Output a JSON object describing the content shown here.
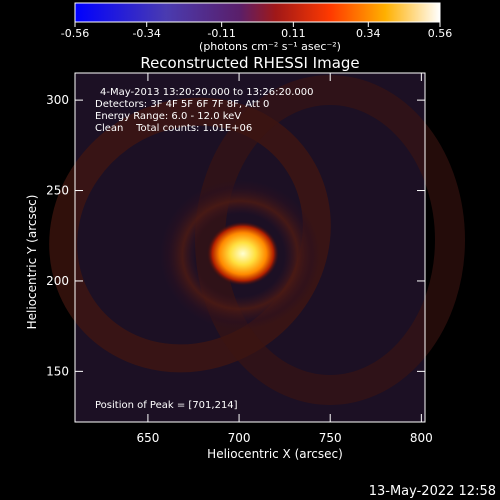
{
  "chart_data": {
    "type": "heatmap",
    "title": "Reconstructed RHESSI Image",
    "xlabel": "Heliocentric X (arcsec)",
    "ylabel": "Heliocentric Y (arcsec)",
    "xlim": [
      610,
      802
    ],
    "ylim": [
      122,
      315
    ],
    "x_ticks": [
      "650",
      "700",
      "750",
      "800"
    ],
    "y_ticks": [
      "150",
      "200",
      "250",
      "300"
    ],
    "grid": false,
    "colorbar": {
      "colormap": "hot",
      "range": [
        -0.56,
        0.56
      ],
      "tick_labels": [
        "-0.56",
        "-0.34",
        "-0.11",
        "0.11",
        "0.34",
        "0.56"
      ],
      "unit_label": "(photons cm⁻² s⁻¹ asec⁻²)"
    },
    "annotations": {
      "time": "4-May-2013 13:20:20.000 to 13:26:20.000",
      "detectors": "Detectors: 3F 4F 5F 6F 7F 8F, Att 0",
      "energy": "Energy Range: 6.0 - 12.0 keV",
      "clean": "Clean    Total counts: 1.01E+06",
      "peak": "Position of Peak = [701,214]"
    },
    "peak": {
      "x": 701,
      "y": 214,
      "value": 0.56
    },
    "background_level": 0.04,
    "footer_date": "13-May-2022 12:58"
  }
}
